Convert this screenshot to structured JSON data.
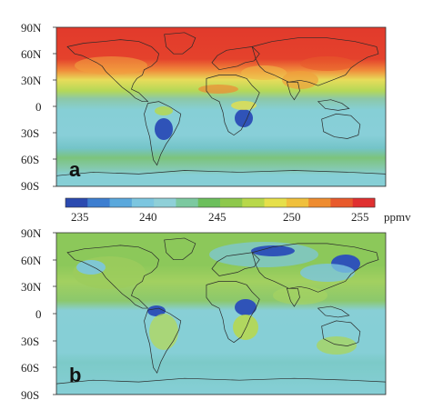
{
  "panels": [
    {
      "letter": "a",
      "lat_labels": [
        "90N",
        "60N",
        "30N",
        "0",
        "30S",
        "60S",
        "90S"
      ]
    },
    {
      "letter": "b",
      "lat_labels": [
        "90N",
        "60N",
        "30N",
        "0",
        "30S",
        "60S",
        "90S"
      ]
    }
  ],
  "colorbar": {
    "ticks": [
      "235",
      "240",
      "245",
      "250",
      "255"
    ],
    "unit": "ppmv",
    "colors": [
      "#2b4ab0",
      "#3d7ed0",
      "#5aa8dc",
      "#7cc6e0",
      "#8fd0d8",
      "#7cc9a0",
      "#6cbf5c",
      "#8ec84c",
      "#b8d84a",
      "#e6e04a",
      "#f0c03c",
      "#ee8c30",
      "#e85a2c",
      "#e03030"
    ]
  },
  "colors": {
    "red": "#e23a2c",
    "orange": "#f08a3a",
    "yellow": "#e8dc5a",
    "green": "#8cc85a",
    "teal": "#86cfd6",
    "blue": "#2f53b8"
  }
}
